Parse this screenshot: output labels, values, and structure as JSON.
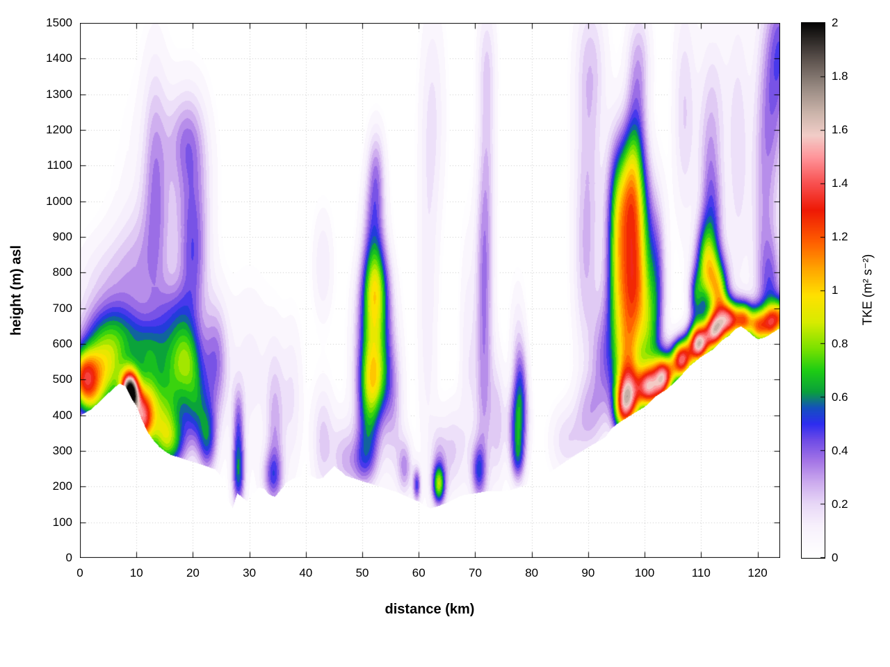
{
  "chart_data": {
    "type": "heatmap",
    "title": "",
    "xlabel": "distance (km)",
    "ylabel": "height (m) asl",
    "colorbar_label": "TKE (m² s⁻²)",
    "x_range": [
      0,
      124
    ],
    "y_range": [
      0,
      1500
    ],
    "c_range": [
      0,
      2
    ],
    "x_ticks": [
      0,
      10,
      20,
      30,
      40,
      50,
      60,
      70,
      80,
      90,
      100,
      110,
      120
    ],
    "y_ticks": [
      0,
      100,
      200,
      300,
      400,
      500,
      600,
      700,
      800,
      900,
      1000,
      1100,
      1200,
      1300,
      1400,
      1500
    ],
    "c_ticks": [
      0,
      0.2,
      0.4,
      0.6,
      0.8,
      1,
      1.2,
      1.4,
      1.6,
      1.8,
      2
    ],
    "grid": true,
    "band_step": 0.05,
    "grid_color": "#c8c8c8",
    "frame_color": "#000000",
    "palette": [
      [
        0.0,
        255,
        255,
        255
      ],
      [
        0.05,
        252,
        250,
        254
      ],
      [
        0.12,
        247,
        240,
        252
      ],
      [
        0.2,
        232,
        216,
        247
      ],
      [
        0.28,
        205,
        172,
        238
      ],
      [
        0.36,
        165,
        118,
        230
      ],
      [
        0.44,
        110,
        75,
        230
      ],
      [
        0.5,
        45,
        45,
        240
      ],
      [
        0.56,
        20,
        80,
        190
      ],
      [
        0.62,
        10,
        160,
        60
      ],
      [
        0.7,
        30,
        205,
        20
      ],
      [
        0.78,
        120,
        225,
        0
      ],
      [
        0.88,
        215,
        235,
        0
      ],
      [
        0.98,
        255,
        225,
        0
      ],
      [
        1.08,
        255,
        165,
        0
      ],
      [
        1.18,
        255,
        95,
        0
      ],
      [
        1.3,
        238,
        25,
        5
      ],
      [
        1.4,
        248,
        80,
        80
      ],
      [
        1.5,
        255,
        150,
        155
      ],
      [
        1.58,
        242,
        205,
        200
      ],
      [
        1.66,
        205,
        182,
        172
      ],
      [
        1.76,
        152,
        138,
        130
      ],
      [
        1.86,
        95,
        85,
        80
      ],
      [
        2.0,
        5,
        5,
        5
      ]
    ],
    "terrain_m": [
      [
        0,
        400
      ],
      [
        2,
        418
      ],
      [
        4,
        448
      ],
      [
        6,
        478
      ],
      [
        7,
        490
      ],
      [
        8,
        482
      ],
      [
        9,
        450
      ],
      [
        10,
        425
      ],
      [
        11,
        385
      ],
      [
        12,
        352
      ],
      [
        13,
        330
      ],
      [
        14,
        312
      ],
      [
        15,
        300
      ],
      [
        16,
        290
      ],
      [
        18,
        280
      ],
      [
        20,
        270
      ],
      [
        22,
        260
      ],
      [
        24,
        248
      ],
      [
        25,
        228
      ],
      [
        26,
        168
      ],
      [
        27,
        140
      ],
      [
        27.8,
        182
      ],
      [
        28.6,
        172
      ],
      [
        29.5,
        160
      ],
      [
        30.5,
        178
      ],
      [
        31.5,
        198
      ],
      [
        32.5,
        196
      ],
      [
        33.5,
        178
      ],
      [
        34.5,
        172
      ],
      [
        35.5,
        192
      ],
      [
        36.5,
        212
      ],
      [
        37.5,
        222
      ],
      [
        39,
        230
      ],
      [
        40,
        234
      ],
      [
        41,
        230
      ],
      [
        42,
        222
      ],
      [
        43,
        226
      ],
      [
        44,
        244
      ],
      [
        45,
        258
      ],
      [
        46,
        246
      ],
      [
        47,
        232
      ],
      [
        48,
        226
      ],
      [
        50,
        216
      ],
      [
        52,
        206
      ],
      [
        54,
        196
      ],
      [
        56,
        186
      ],
      [
        58,
        172
      ],
      [
        60,
        158
      ],
      [
        61,
        148
      ],
      [
        62,
        140
      ],
      [
        63,
        144
      ],
      [
        64,
        150
      ],
      [
        65,
        156
      ],
      [
        66,
        164
      ],
      [
        67,
        172
      ],
      [
        68,
        178
      ],
      [
        70,
        182
      ],
      [
        72,
        188
      ],
      [
        74,
        188
      ],
      [
        76,
        190
      ],
      [
        78,
        200
      ],
      [
        80,
        212
      ],
      [
        82,
        230
      ],
      [
        84,
        250
      ],
      [
        86,
        272
      ],
      [
        88,
        292
      ],
      [
        90,
        312
      ],
      [
        92,
        330
      ],
      [
        93,
        340
      ],
      [
        94,
        362
      ],
      [
        95,
        376
      ],
      [
        96,
        386
      ],
      [
        98,
        406
      ],
      [
        100,
        425
      ],
      [
        102,
        455
      ],
      [
        104,
        475
      ],
      [
        106,
        505
      ],
      [
        108,
        540
      ],
      [
        110,
        565
      ],
      [
        112,
        585
      ],
      [
        113,
        600
      ],
      [
        114,
        615
      ],
      [
        115,
        625
      ],
      [
        116,
        642
      ],
      [
        117,
        650
      ],
      [
        118,
        640
      ],
      [
        119,
        625
      ],
      [
        120,
        614
      ],
      [
        121,
        618
      ],
      [
        122,
        626
      ],
      [
        123,
        636
      ],
      [
        124,
        646
      ]
    ],
    "tke_blobs": [
      [
        0.5,
        510,
        1.8,
        55,
        0.9
      ],
      [
        3,
        540,
        2.2,
        70,
        0.5
      ],
      [
        6,
        520,
        2.2,
        80,
        0.5
      ],
      [
        2,
        440,
        2.0,
        50,
        0.45
      ],
      [
        8.8,
        462,
        1.1,
        42,
        1.9
      ],
      [
        10.8,
        385,
        1.3,
        55,
        1.0
      ],
      [
        12,
        450,
        1.6,
        70,
        0.45
      ],
      [
        14,
        380,
        2.0,
        80,
        0.45
      ],
      [
        16,
        320,
        2.0,
        55,
        0.5
      ],
      [
        16.5,
        470,
        2.0,
        90,
        0.42
      ],
      [
        19,
        560,
        2.0,
        70,
        0.5
      ],
      [
        20.5,
        430,
        1.6,
        80,
        0.45
      ],
      [
        12,
        580,
        3.0,
        60,
        0.38
      ],
      [
        6,
        640,
        4.0,
        60,
        0.3
      ],
      [
        17,
        680,
        2.5,
        70,
        0.3
      ],
      [
        22.5,
        330,
        1.2,
        70,
        0.45
      ],
      [
        24,
        550,
        1.5,
        120,
        0.35
      ],
      [
        20,
        820,
        1.8,
        130,
        0.3
      ],
      [
        20,
        1050,
        2.2,
        160,
        0.24
      ],
      [
        18.5,
        1180,
        2.2,
        90,
        0.18
      ],
      [
        5,
        750,
        4.0,
        100,
        0.2
      ],
      [
        13.5,
        950,
        1.8,
        220,
        0.16
      ],
      [
        28,
        240,
        0.8,
        75,
        0.55
      ],
      [
        28,
        390,
        0.7,
        70,
        0.28
      ],
      [
        34.5,
        350,
        1.1,
        160,
        0.26
      ],
      [
        34,
        230,
        1.3,
        50,
        0.3
      ],
      [
        37.5,
        450,
        1.3,
        150,
        0.15
      ],
      [
        43,
        330,
        1.4,
        110,
        0.22
      ],
      [
        43,
        820,
        1.3,
        110,
        0.15
      ],
      [
        46.5,
        280,
        1.4,
        80,
        0.2
      ],
      [
        30,
        520,
        3.0,
        180,
        0.12
      ],
      [
        14,
        1000,
        5.0,
        260,
        0.1
      ],
      [
        10,
        820,
        3.0,
        120,
        0.15
      ],
      [
        13.2,
        1150,
        1.4,
        200,
        0.13
      ],
      [
        52,
        620,
        2.0,
        130,
        0.78
      ],
      [
        52.3,
        770,
        1.6,
        80,
        0.45
      ],
      [
        51.8,
        490,
        1.8,
        70,
        0.45
      ],
      [
        52,
        930,
        1.4,
        110,
        0.35
      ],
      [
        52.4,
        1090,
        1.1,
        90,
        0.25
      ],
      [
        51,
        360,
        1.6,
        80,
        0.4
      ],
      [
        50,
        265,
        1.8,
        55,
        0.3
      ],
      [
        55.5,
        420,
        1.3,
        140,
        0.22
      ],
      [
        57.5,
        255,
        0.9,
        55,
        0.3
      ],
      [
        63.5,
        205,
        0.8,
        40,
        0.7
      ],
      [
        63.5,
        280,
        1.0,
        70,
        0.2
      ],
      [
        59.6,
        205,
        0.5,
        35,
        0.45
      ],
      [
        61.5,
        700,
        1.3,
        350,
        0.13
      ],
      [
        62.5,
        1250,
        1.6,
        220,
        0.14
      ],
      [
        66,
        300,
        1.4,
        90,
        0.2
      ],
      [
        68.5,
        550,
        1.0,
        250,
        0.13
      ],
      [
        71.5,
        480,
        1.2,
        220,
        0.3
      ],
      [
        71.5,
        850,
        1.1,
        180,
        0.24
      ],
      [
        72,
        1150,
        1.1,
        200,
        0.18
      ],
      [
        72,
        1400,
        1.2,
        120,
        0.13
      ],
      [
        70.5,
        245,
        0.9,
        55,
        0.4
      ],
      [
        74,
        380,
        0.9,
        120,
        0.2
      ],
      [
        77.5,
        375,
        1.2,
        75,
        0.5
      ],
      [
        77.5,
        275,
        0.9,
        50,
        0.35
      ],
      [
        78,
        490,
        0.9,
        80,
        0.3
      ],
      [
        77.5,
        600,
        1.0,
        120,
        0.15
      ],
      [
        86,
        330,
        2.0,
        70,
        0.18
      ],
      [
        90,
        400,
        1.8,
        80,
        0.22
      ],
      [
        92.5,
        550,
        1.5,
        120,
        0.28
      ],
      [
        89.5,
        800,
        1.6,
        200,
        0.2
      ],
      [
        90,
        1150,
        1.8,
        220,
        0.18
      ],
      [
        90.5,
        1400,
        2.0,
        130,
        0.15
      ],
      [
        98,
        880,
        2.1,
        150,
        1.0
      ],
      [
        97.8,
        690,
        2.2,
        110,
        0.6
      ],
      [
        97.6,
        1040,
        1.7,
        100,
        0.45
      ],
      [
        98,
        1150,
        1.4,
        80,
        0.2
      ],
      [
        98.5,
        1270,
        1.4,
        110,
        0.25
      ],
      [
        99,
        1420,
        1.5,
        100,
        0.18
      ],
      [
        96.8,
        540,
        1.7,
        90,
        0.6
      ],
      [
        97.3,
        445,
        1.4,
        60,
        1.0
      ],
      [
        95.8,
        415,
        1.1,
        55,
        0.55
      ],
      [
        100.8,
        580,
        1.3,
        130,
        0.4
      ],
      [
        102.3,
        780,
        1.1,
        160,
        0.3
      ],
      [
        94.8,
        780,
        1.3,
        180,
        0.35
      ],
      [
        102.8,
        440,
        1.1,
        70,
        0.5
      ],
      [
        95,
        1000,
        1.3,
        150,
        0.3
      ],
      [
        100.5,
        478,
        1.3,
        40,
        1.0
      ],
      [
        103.5,
        512,
        1.3,
        40,
        1.1
      ],
      [
        106.5,
        556,
        1.3,
        40,
        1.35
      ],
      [
        109.5,
        600,
        1.3,
        40,
        1.5
      ],
      [
        112.3,
        636,
        1.3,
        40,
        1.3
      ],
      [
        115,
        668,
        1.3,
        38,
        1.15
      ],
      [
        117.6,
        668,
        1.1,
        36,
        0.95
      ],
      [
        120,
        650,
        1.1,
        36,
        0.85
      ],
      [
        122.3,
        660,
        1.1,
        36,
        0.8
      ],
      [
        124.3,
        676,
        1.1,
        36,
        0.75
      ],
      [
        112,
        780,
        1.7,
        65,
        0.65
      ],
      [
        110.7,
        850,
        1.3,
        75,
        0.45
      ],
      [
        113.3,
        725,
        1.1,
        55,
        0.5
      ],
      [
        109,
        730,
        0.9,
        55,
        0.45
      ],
      [
        112,
        940,
        1.4,
        100,
        0.28
      ],
      [
        111.5,
        1080,
        1.4,
        130,
        0.2
      ],
      [
        112,
        1280,
        1.8,
        160,
        0.17
      ],
      [
        107,
        1250,
        1.4,
        220,
        0.2
      ],
      [
        116.5,
        1150,
        1.4,
        280,
        0.18
      ],
      [
        121,
        950,
        1.6,
        350,
        0.25
      ],
      [
        123,
        1300,
        1.8,
        200,
        0.28
      ],
      [
        122.5,
        740,
        1.4,
        110,
        0.3
      ],
      [
        124.3,
        1450,
        1.5,
        120,
        0.25
      ]
    ]
  }
}
